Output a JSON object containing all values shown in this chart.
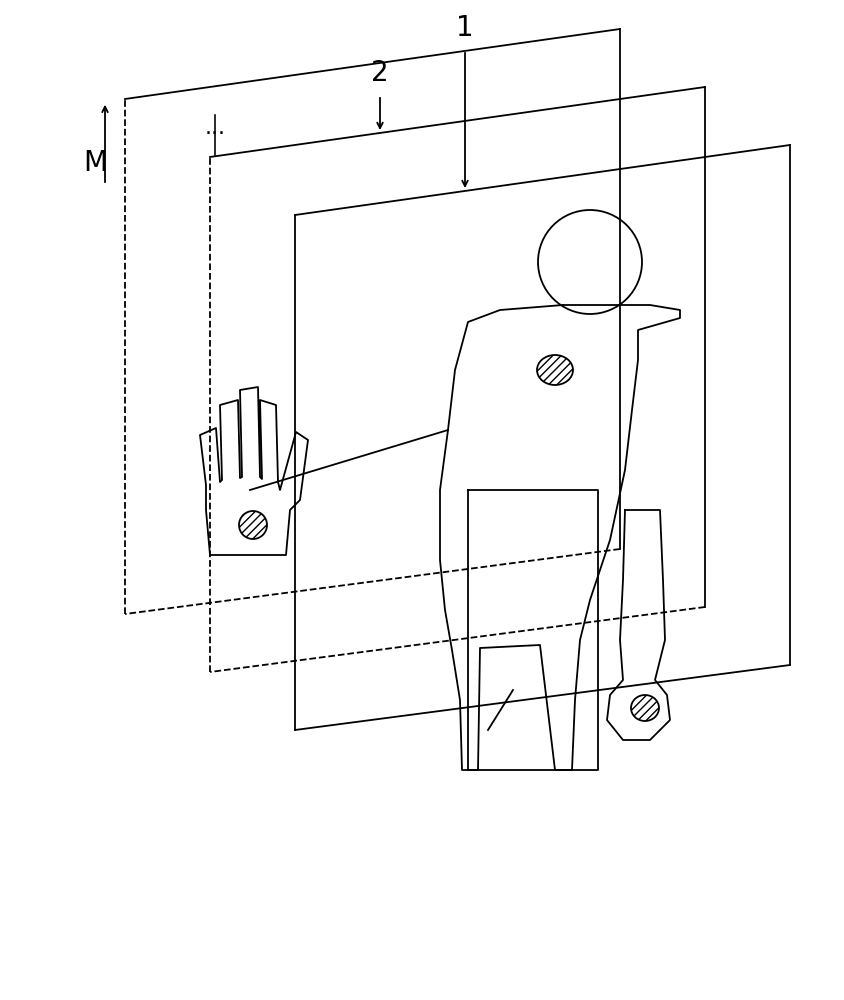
{
  "background_color": "#ffffff",
  "line_color": "#000000",
  "figsize": [
    8.44,
    10.0
  ],
  "dpi": 100,
  "lw": 1.3
}
